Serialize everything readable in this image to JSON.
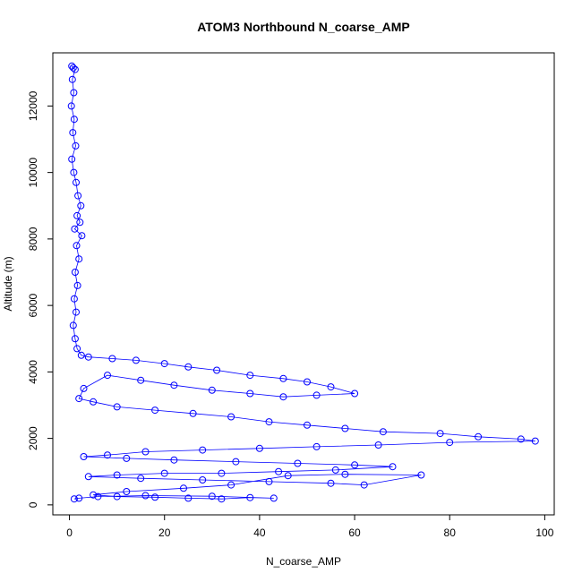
{
  "chart_data": {
    "type": "scatter",
    "title": "ATOM3 Northbound N_coarse_AMP",
    "xlabel": "N_coarse_AMP",
    "ylabel": "Altitude (m)",
    "xlim": [
      -3.5,
      102
    ],
    "ylim": [
      -300,
      13600
    ],
    "xticks": [
      "0",
      "20",
      "40",
      "60",
      "80",
      "100"
    ],
    "yticks": [
      "0",
      "2000",
      "4000",
      "6000",
      "8000",
      "10000",
      "12000"
    ],
    "point_color": "#0000ff",
    "marker": "open-circle",
    "connected": true,
    "series": [
      {
        "points": [
          [
            0.5,
            13200
          ],
          [
            0.8,
            13150
          ],
          [
            1.2,
            13100
          ],
          [
            0.6,
            12800
          ],
          [
            0.9,
            12400
          ],
          [
            0.4,
            12000
          ],
          [
            1.0,
            11600
          ],
          [
            0.7,
            11200
          ],
          [
            1.3,
            10800
          ],
          [
            0.5,
            10400
          ],
          [
            0.9,
            10000
          ],
          [
            1.4,
            9700
          ],
          [
            1.8,
            9300
          ],
          [
            2.4,
            9000
          ],
          [
            1.6,
            8700
          ],
          [
            2.2,
            8500
          ],
          [
            1.1,
            8300
          ],
          [
            2.6,
            8100
          ],
          [
            1.5,
            7800
          ],
          [
            2.0,
            7400
          ],
          [
            1.2,
            7000
          ],
          [
            1.7,
            6600
          ],
          [
            1.0,
            6200
          ],
          [
            1.4,
            5800
          ],
          [
            0.8,
            5400
          ],
          [
            1.2,
            5000
          ],
          [
            1.6,
            4700
          ],
          [
            2.5,
            4500
          ],
          [
            4.0,
            4450
          ],
          [
            9.0,
            4400
          ],
          [
            14.0,
            4350
          ],
          [
            20.0,
            4250
          ],
          [
            25.0,
            4150
          ],
          [
            31.0,
            4050
          ],
          [
            38.0,
            3900
          ],
          [
            45.0,
            3800
          ],
          [
            50.0,
            3700
          ],
          [
            55.0,
            3550
          ],
          [
            60.0,
            3350
          ],
          [
            52.0,
            3300
          ],
          [
            45.0,
            3250
          ],
          [
            38.0,
            3350
          ],
          [
            30.0,
            3450
          ],
          [
            22.0,
            3600
          ],
          [
            15.0,
            3750
          ],
          [
            8.0,
            3900
          ],
          [
            3.0,
            3500
          ],
          [
            2.0,
            3200
          ],
          [
            5.0,
            3100
          ],
          [
            10.0,
            2950
          ],
          [
            18.0,
            2850
          ],
          [
            26.0,
            2750
          ],
          [
            34.0,
            2650
          ],
          [
            42.0,
            2500
          ],
          [
            50.0,
            2400
          ],
          [
            58.0,
            2300
          ],
          [
            66.0,
            2200
          ],
          [
            78.0,
            2150
          ],
          [
            86.0,
            2050
          ],
          [
            95.0,
            1980
          ],
          [
            98.0,
            1920
          ],
          [
            80.0,
            1880
          ],
          [
            65.0,
            1800
          ],
          [
            52.0,
            1750
          ],
          [
            40.0,
            1700
          ],
          [
            28.0,
            1650
          ],
          [
            16.0,
            1600
          ],
          [
            8.0,
            1500
          ],
          [
            3.0,
            1450
          ],
          [
            12.0,
            1400
          ],
          [
            22.0,
            1350
          ],
          [
            35.0,
            1300
          ],
          [
            48.0,
            1250
          ],
          [
            60.0,
            1200
          ],
          [
            68.0,
            1150
          ],
          [
            56.0,
            1050
          ],
          [
            44.0,
            1000
          ],
          [
            32.0,
            950
          ],
          [
            20.0,
            950
          ],
          [
            10.0,
            900
          ],
          [
            4.0,
            850
          ],
          [
            15.0,
            800
          ],
          [
            28.0,
            750
          ],
          [
            42.0,
            700
          ],
          [
            55.0,
            650
          ],
          [
            62.0,
            600
          ],
          [
            74.0,
            900
          ],
          [
            58.0,
            920
          ],
          [
            46.0,
            880
          ],
          [
            34.0,
            600
          ],
          [
            24.0,
            500
          ],
          [
            12.0,
            400
          ],
          [
            5.0,
            300
          ],
          [
            10.0,
            250
          ],
          [
            18.0,
            230
          ],
          [
            25.0,
            200
          ],
          [
            32.0,
            180
          ],
          [
            38.0,
            220
          ],
          [
            43.0,
            200
          ],
          [
            30.0,
            260
          ],
          [
            16.0,
            280
          ],
          [
            6.0,
            250
          ],
          [
            2.0,
            200
          ],
          [
            1.0,
            180
          ]
        ]
      }
    ]
  }
}
